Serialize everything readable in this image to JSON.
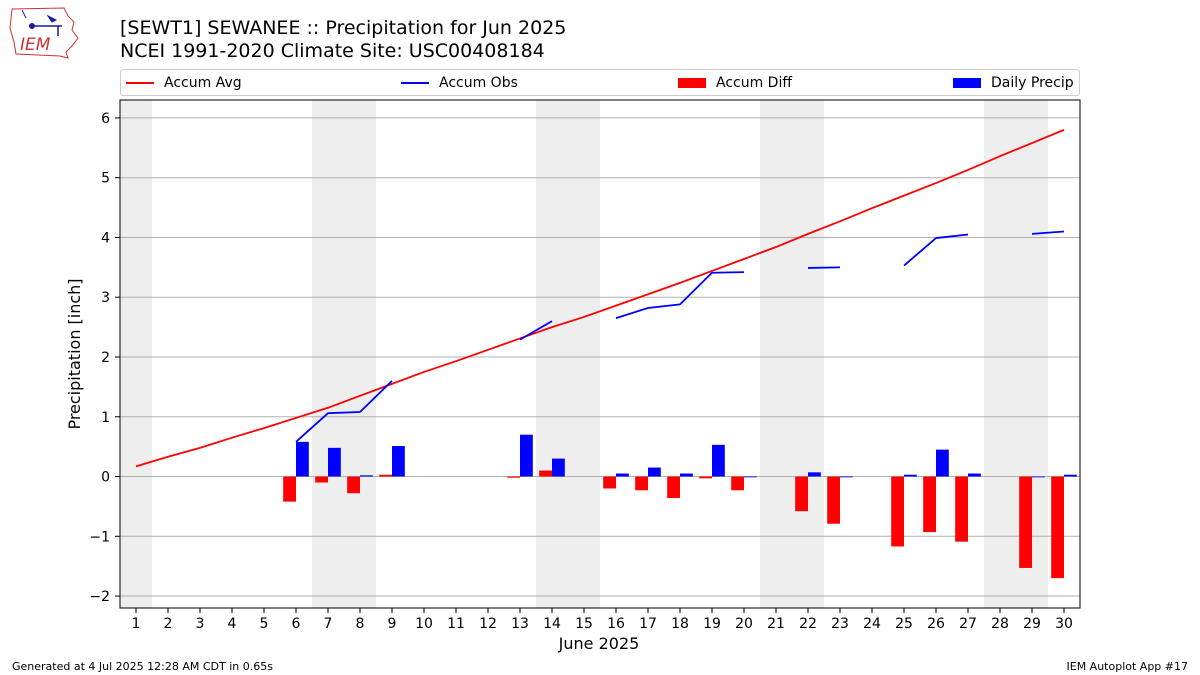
{
  "header": {
    "title_line1": "[SEWT1] SEWANEE :: Precipitation for Jun 2025",
    "title_line2": "NCEI 1991-2020 Climate Site: USC00408184",
    "logo_text": "IEM"
  },
  "footer": {
    "left": "Generated at 4 Jul 2025 12:28 AM CDT in 0.65s",
    "right": "IEM Autoplot App #17"
  },
  "colors": {
    "accum_avg": "#ff0000",
    "accum_obs": "#0000ff",
    "accum_diff": "#ff0000",
    "daily_precip": "#0000ff",
    "weekend_shade": "#eeeeee",
    "grid": "#b0b0b0"
  },
  "chart_data": {
    "type": "bar",
    "xlabel": "June 2025",
    "ylabel": "Precipitation [inch]",
    "ylim": [
      -2.2,
      6.3
    ],
    "yticks": [
      -2,
      -1,
      0,
      1,
      2,
      3,
      4,
      5,
      6
    ],
    "ytick_labels": [
      "−2",
      "−1",
      "0",
      "1",
      "2",
      "3",
      "4",
      "5",
      "6"
    ],
    "x": [
      1,
      2,
      3,
      4,
      5,
      6,
      7,
      8,
      9,
      10,
      11,
      12,
      13,
      14,
      15,
      16,
      17,
      18,
      19,
      20,
      21,
      22,
      23,
      24,
      25,
      26,
      27,
      28,
      29,
      30
    ],
    "grid": "horizontal",
    "legend_position": "top",
    "weekend_days": [
      1,
      7,
      8,
      14,
      15,
      21,
      22,
      28,
      29
    ],
    "legend": [
      "Accum Avg",
      "Accum Obs",
      "Accum Diff",
      "Daily Precip"
    ],
    "series": [
      {
        "name": "Accum Avg",
        "kind": "line",
        "values": [
          0.17,
          0.33,
          0.48,
          0.65,
          0.81,
          0.98,
          1.15,
          1.35,
          1.55,
          1.75,
          1.93,
          2.12,
          2.31,
          2.5,
          2.67,
          2.86,
          3.05,
          3.24,
          3.44,
          3.64,
          3.84,
          4.06,
          4.27,
          4.49,
          4.7,
          4.91,
          5.13,
          5.36,
          5.58,
          5.8
        ]
      },
      {
        "name": "Accum Obs",
        "kind": "line",
        "values": [
          null,
          null,
          null,
          null,
          null,
          0.58,
          1.06,
          1.08,
          1.6,
          null,
          null,
          null,
          2.29,
          2.6,
          null,
          2.65,
          2.82,
          2.88,
          3.41,
          3.42,
          null,
          3.49,
          3.5,
          null,
          3.53,
          3.99,
          4.05,
          null,
          4.06,
          4.1
        ]
      },
      {
        "name": "Accum Diff",
        "kind": "bar",
        "values": [
          null,
          null,
          null,
          null,
          null,
          -0.42,
          -0.1,
          -0.28,
          0.03,
          null,
          null,
          null,
          -0.02,
          0.1,
          null,
          -0.2,
          -0.23,
          -0.36,
          -0.03,
          -0.23,
          null,
          -0.58,
          -0.79,
          null,
          -1.17,
          -0.93,
          -1.09,
          null,
          -1.53,
          -1.7
        ]
      },
      {
        "name": "Daily Precip",
        "kind": "bar",
        "values": [
          null,
          null,
          null,
          null,
          null,
          0.58,
          0.48,
          0.02,
          0.51,
          null,
          null,
          null,
          0.7,
          0.3,
          null,
          0.05,
          0.15,
          0.05,
          0.53,
          0.0,
          null,
          0.07,
          0.0,
          null,
          0.03,
          0.45,
          0.05,
          null,
          0.0,
          0.03
        ]
      }
    ]
  }
}
